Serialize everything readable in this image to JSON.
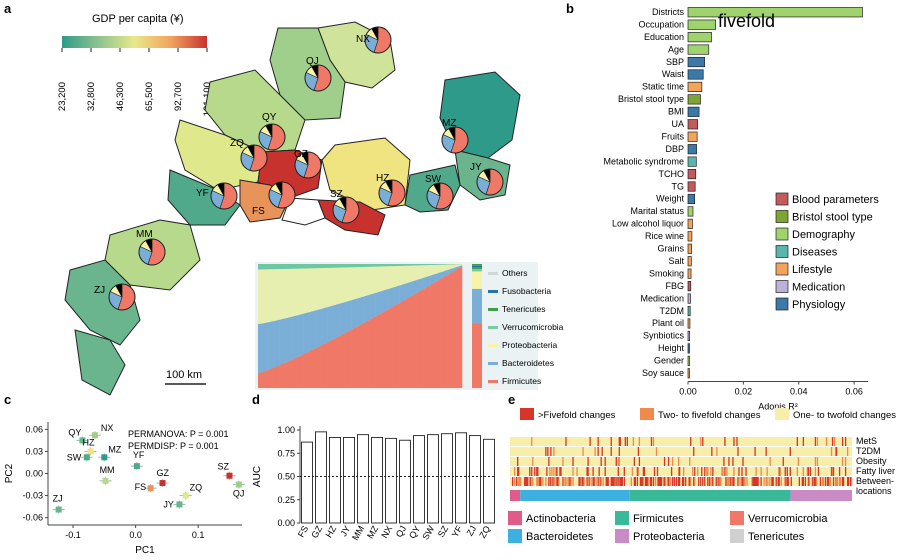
{
  "panel_letters": {
    "a": "a",
    "b": "b",
    "c": "c",
    "d": "d",
    "e": "e"
  },
  "colors": {
    "gdp_scale": [
      "#2e9b8a",
      "#6ab58e",
      "#a8d18c",
      "#d7e58a",
      "#f3e07a",
      "#e8935a",
      "#c8322e"
    ],
    "firmicutes": "#f07866",
    "bacteroidetes": "#7aaed6",
    "proteobacteria": "#f7f3a8",
    "verrucomicrobia": "#7bcaa4",
    "tenericutes": "#3aa04a",
    "fusobacteria": "#2b6fb0",
    "others": "#cfd8d8",
    "cat_blood": "#c25b5b",
    "cat_bristol": "#7ea531",
    "cat_demography": "#9fd36b",
    "cat_diseases": "#58b6ae",
    "cat_lifestyle": "#f3a45a",
    "cat_medication": "#bcb1d8",
    "cat_physiology": "#3c78a8",
    "change_gt5": "#d7342a",
    "change_2to5": "#ef8a4a",
    "change_1to2": "#f7eeaa",
    "phylum_actino": "#e05a8a",
    "phylum_bacteroidetes": "#3cb0e0",
    "phylum_firmicutes": "#3ab89a",
    "phylum_proteo": "#c98ac6",
    "phylum_verruco": "#f07866",
    "phylum_teneri": "#d0d0d0"
  },
  "panel_a": {
    "legend_title": "GDP per capita (¥)",
    "legend_ticks": [
      "23,200",
      "32,800",
      "46,300",
      "65,500",
      "92,700",
      "131,100"
    ],
    "scale_bar": "100 km",
    "cities": [
      "NX",
      "QJ",
      "QY",
      "MZ",
      "ZQ",
      "GZ",
      "JY",
      "SZ",
      "HZ",
      "SW",
      "YF",
      "FS",
      "MM",
      "ZJ"
    ],
    "inset_legend": [
      "Others",
      "Fusobacteria",
      "Tenericutes",
      "Verrucomicrobia",
      "Proteobacteria",
      "Bacteroidetes",
      "Firmicutes"
    ]
  },
  "panel_b": {
    "annotation": "fivefold",
    "legend": [
      "Blood parameters",
      "Bristol stool type",
      "Demography",
      "Diseases",
      "Lifestyle",
      "Medication",
      "Physiology"
    ]
  },
  "panel_c": {
    "stat1": "PERMANOVA: P = 0.001",
    "stat2": "PERMDISP: P = 0.001"
  },
  "panel_e": {
    "legend": [
      ">Fivefold changes",
      "Two- to fivefold changes",
      "One- to twofold changes"
    ],
    "rows": [
      "MetS",
      "T2DM",
      "Obesity",
      "Fatty liver",
      "Between-",
      "locations"
    ],
    "phyla": [
      "Actinobacteria",
      "Bacteroidetes",
      "Firmicutes",
      "Proteobacteria",
      "Verrucomicrobia",
      "Tenericutes"
    ]
  },
  "chart_data": [
    {
      "type": "bar",
      "panel": "b",
      "xlabel": "Adonis R²",
      "xlim": [
        0,
        0.065
      ],
      "xticks": [
        "0.00",
        "0.02",
        "0.04",
        "0.06"
      ],
      "categories": [
        "Districts",
        "Occupation",
        "Education",
        "Age",
        "SBP",
        "Waist",
        "Static time",
        "Bristol stool type",
        "BMI",
        "UA",
        "Fruits",
        "DBP",
        "Metabolic syndrome",
        "TCHO",
        "TG",
        "Weight",
        "Marital status",
        "Low alcohol liquor",
        "Rice wine",
        "Grains",
        "Salt",
        "Smoking",
        "FBG",
        "Medication",
        "T2DM",
        "Plant oil",
        "Synbiotics",
        "Height",
        "Gender",
        "Soy sauce"
      ],
      "values": [
        0.063,
        0.01,
        0.0085,
        0.0075,
        0.006,
        0.0055,
        0.005,
        0.0045,
        0.004,
        0.0035,
        0.0033,
        0.0031,
        0.003,
        0.0028,
        0.0026,
        0.0024,
        0.0018,
        0.0016,
        0.0014,
        0.0013,
        0.0012,
        0.0011,
        0.001,
        0.0009,
        0.0008,
        0.0007,
        0.0006,
        0.0005,
        0.0004,
        0.0003
      ],
      "groups": [
        "Demography",
        "Demography",
        "Demography",
        "Demography",
        "Physiology",
        "Physiology",
        "Lifestyle",
        "Bristol stool type",
        "Physiology",
        "Blood parameters",
        "Lifestyle",
        "Physiology",
        "Diseases",
        "Blood parameters",
        "Blood parameters",
        "Physiology",
        "Demography",
        "Lifestyle",
        "Lifestyle",
        "Lifestyle",
        "Lifestyle",
        "Lifestyle",
        "Blood parameters",
        "Medication",
        "Diseases",
        "Lifestyle",
        "Medication",
        "Physiology",
        "Demography",
        "Lifestyle"
      ]
    },
    {
      "type": "scatter",
      "panel": "c",
      "xlabel": "PC1",
      "ylabel": "PC2",
      "xlim": [
        -0.14,
        0.17
      ],
      "ylim": [
        -0.07,
        0.07
      ],
      "xticks": [
        "-0.1",
        "0.0",
        "0.1"
      ],
      "yticks": [
        "0.06",
        "0.03",
        "0.00",
        "-0.03",
        "-0.06"
      ],
      "points": [
        {
          "label": "QY",
          "x": -0.085,
          "y": 0.045
        },
        {
          "label": "NX",
          "x": -0.065,
          "y": 0.052
        },
        {
          "label": "HZ",
          "x": -0.072,
          "y": 0.03
        },
        {
          "label": "MZ",
          "x": -0.05,
          "y": 0.022
        },
        {
          "label": "SW",
          "x": -0.078,
          "y": 0.022
        },
        {
          "label": "YF",
          "x": 0.002,
          "y": 0.01
        },
        {
          "label": "MM",
          "x": -0.048,
          "y": -0.01
        },
        {
          "label": "FS",
          "x": 0.024,
          "y": -0.02
        },
        {
          "label": "GZ",
          "x": 0.043,
          "y": -0.013
        },
        {
          "label": "ZQ",
          "x": 0.08,
          "y": -0.03
        },
        {
          "label": "JY",
          "x": 0.07,
          "y": -0.042
        },
        {
          "label": "SZ",
          "x": 0.15,
          "y": -0.003
        },
        {
          "label": "QJ",
          "x": 0.165,
          "y": -0.015
        },
        {
          "label": "ZJ",
          "x": -0.123,
          "y": -0.049
        }
      ]
    },
    {
      "type": "bar",
      "panel": "d",
      "ylabel": "AUC",
      "ylim": [
        0,
        1
      ],
      "yticks": [
        "0.00",
        "0.25",
        "0.50",
        "0.75",
        "1.00"
      ],
      "categories": [
        "FS",
        "GZ",
        "HZ",
        "JY",
        "MM",
        "MZ",
        "NX",
        "QJ",
        "QY",
        "SW",
        "SZ",
        "YF",
        "ZJ",
        "ZQ"
      ],
      "values": [
        0.87,
        0.98,
        0.92,
        0.92,
        0.95,
        0.92,
        0.91,
        0.89,
        0.94,
        0.95,
        0.96,
        0.97,
        0.94,
        0.9
      ]
    }
  ]
}
